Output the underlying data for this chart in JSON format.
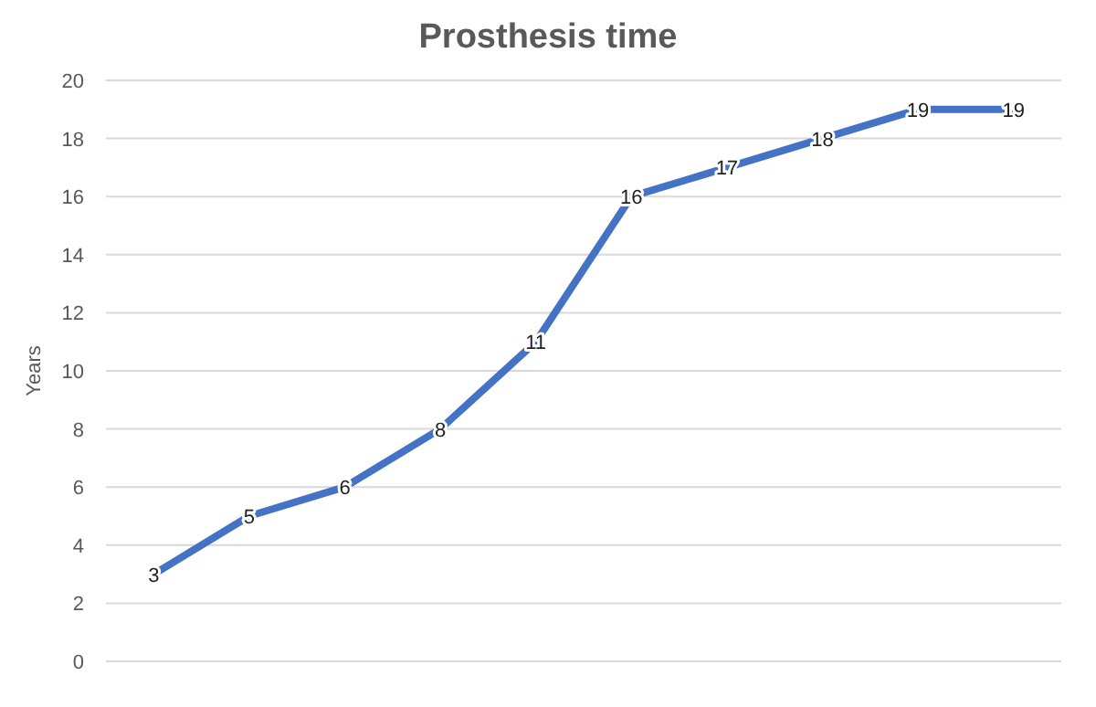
{
  "chart_data": {
    "type": "line",
    "title": "Prosthesis time",
    "ylabel": "Years",
    "categories": [
      null,
      null,
      null,
      null,
      null,
      null,
      null,
      null,
      null,
      null
    ],
    "series": [
      {
        "color": "#4472c4",
        "values": [
          3,
          5,
          6,
          8,
          11,
          16,
          17,
          18,
          19,
          19
        ]
      }
    ],
    "ylim": [
      0,
      20
    ],
    "yticks": [
      0,
      2,
      4,
      6,
      8,
      10,
      12,
      14,
      16,
      18,
      20
    ],
    "grid": "y",
    "data_labels": true,
    "marker": "none",
    "line_style": "solid"
  }
}
